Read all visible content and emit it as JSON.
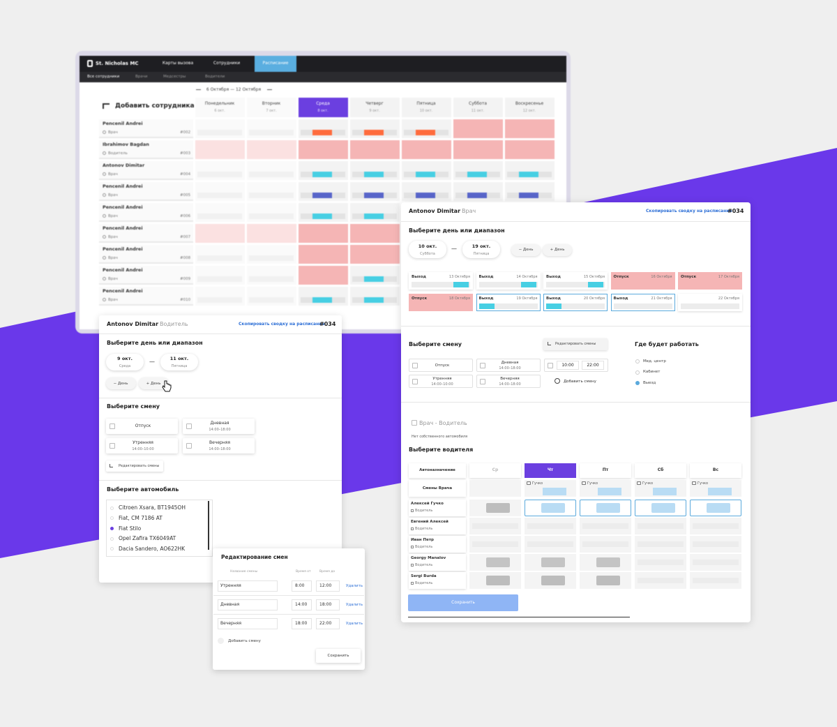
{
  "schedule": {
    "logo": "St. Nicholas MC",
    "nav": [
      "Карты вызова",
      "Сотрудники",
      "Расписание"
    ],
    "nav_active": 2,
    "nav_active_color": "#5aaee0",
    "subnav": [
      "Все сотрудники",
      "Врачи",
      "Медсестры",
      "Водители"
    ],
    "week": "6 Октября — 12 Октября",
    "add_employee": "Добавить сотрудника",
    "days": [
      {
        "name": "Понедельник",
        "date": "6 окт."
      },
      {
        "name": "Вторник",
        "date": "7 окт."
      },
      {
        "name": "Среда",
        "date": "8 окт."
      },
      {
        "name": "Четверг",
        "date": "9 окт."
      },
      {
        "name": "Пятница",
        "date": "10 окт."
      },
      {
        "name": "Суббота",
        "date": "11 окт."
      },
      {
        "name": "Воскресенье",
        "date": "12 окт."
      }
    ],
    "active_day": 2,
    "active_color": "#6b3fe0",
    "employees": [
      {
        "name": "Pencenil Andrei",
        "role": "Врач",
        "id": "#002",
        "cells": [
          null,
          null,
          {
            "bar": "#ff6b3d"
          },
          {
            "bar": "#ff6b3d"
          },
          {
            "bar": "#ff6b3d"
          },
          {
            "fill": "#f5b5b5"
          },
          {
            "fill": "#f5b5b5"
          }
        ]
      },
      {
        "name": "Ibrahimov Bagdan",
        "role": "Водитель",
        "id": "#003",
        "cells": [
          {
            "fill": "#f5b5b5"
          },
          {
            "fill": "#f5b5b5"
          },
          {
            "fill": "#f5b5b5"
          },
          {
            "fill": "#f5b5b5"
          },
          {
            "fill": "#f5b5b5"
          },
          {
            "fill": "#f5b5b5"
          },
          {
            "fill": "#f5b5b5"
          }
        ]
      },
      {
        "name": "Antonov Dimitar",
        "role": "Врач",
        "id": "#004",
        "cells": [
          null,
          null,
          {
            "bar": "#47cfe3"
          },
          {
            "bar": "#47cfe3"
          },
          {
            "bar": "#47cfe3"
          },
          {
            "bar": "#47cfe3"
          },
          {
            "bar": "#47cfe3"
          }
        ]
      },
      {
        "name": "Pencenil Andrei",
        "role": "Врач",
        "id": "#005",
        "cells": [
          null,
          null,
          {
            "bar": "#5865c9"
          },
          {
            "bar": "#5865c9"
          },
          {
            "bar": "#5865c9"
          },
          {
            "bar": "#5865c9"
          },
          {
            "bar": "#5865c9"
          }
        ]
      },
      {
        "name": "Pencenil Andrei",
        "role": "Врач",
        "id": "#006",
        "cells": [
          null,
          null,
          {
            "bar": "#47cfe3"
          },
          {
            "bar": "#47cfe3"
          },
          {
            "bar": "#47cfe3"
          },
          null,
          null
        ]
      },
      {
        "name": "Pencenil Andrei",
        "role": "Врач",
        "id": "#007",
        "cells": [
          {
            "fill": "#f5b5b5"
          },
          {
            "fill": "#f5b5b5"
          },
          {
            "fill": "#f5b5b5"
          },
          {
            "fill": "#f5b5b5"
          },
          {
            "fill": "#f5b5b5"
          },
          null,
          null
        ]
      },
      {
        "name": "Pencenil Andrei",
        "role": "Врач",
        "id": "#008",
        "cells": [
          null,
          null,
          {
            "fill": "#f5b5b5"
          },
          {
            "fill": "#f5b5b5"
          },
          null,
          null,
          null
        ]
      },
      {
        "name": "Pencenil Andrei",
        "role": "Врач",
        "id": "#009",
        "cells": [
          null,
          null,
          {
            "fill": "#f5b5b5"
          },
          {
            "bar": "#47cfe3"
          },
          null,
          null,
          null
        ]
      },
      {
        "name": "Pencenil Andrei",
        "role": "Врач",
        "id": "#010",
        "cells": [
          null,
          null,
          {
            "bar": "#47cfe3"
          },
          {
            "bar": "#47cfe3"
          },
          null,
          null,
          null
        ]
      }
    ]
  },
  "driver_card": {
    "name": "Antonov Dimitar",
    "role": "Водитель",
    "copy_link": "Скопировать сводку на расписание",
    "number": "#034",
    "range_title": "Выберите день или диапазон",
    "range_from": {
      "date": "9 окт.",
      "day": "Среда"
    },
    "range_sep": "—",
    "range_to": {
      "date": "11 окт.",
      "day": "Пятница"
    },
    "minus_day": "− День",
    "plus_day": "+ День",
    "shift_title": "Выберите смену",
    "shifts": [
      {
        "name": "Отпуск"
      },
      {
        "name": "Дневная",
        "time": "14:00–18:00"
      },
      {
        "name": "Утренняя",
        "time": "14:00–10:00"
      },
      {
        "name": "Вечерняя",
        "time": "14:00–18:00"
      }
    ],
    "edit_shifts": "Редактировать смены",
    "car_title": "Выберите автомобиль",
    "cars": [
      "Citroen Xsara, BT1945ОН",
      "Fiat, CM 7186 AT",
      "Fiat Stilo",
      "Opel Zafira TX6049AT",
      "Dacia Sandero, AO622HK"
    ],
    "selected_car": 2
  },
  "shift_editor": {
    "title": "Редактирование смен",
    "columns": [
      "Название смены",
      "Время от",
      "Время до"
    ],
    "rows": [
      {
        "name": "Утренняя",
        "from": "8:00",
        "to": "12:00",
        "action": "Удалить"
      },
      {
        "name": "Дневная",
        "from": "14:00",
        "to": "18:00",
        "action": "Удалить"
      },
      {
        "name": "Вечерняя",
        "from": "18:00",
        "to": "22:00",
        "action": "Удалить"
      }
    ],
    "add": "Добавить смену",
    "save": "Сохранить"
  },
  "doctor_card": {
    "name": "Antonov Dimitar",
    "role": "Врач",
    "copy_link": "Скопировать сводку на расписание",
    "number": "#034",
    "range_title": "Выберите день или диапазон",
    "range_from": {
      "date": "10 окт.",
      "day": "Суббота"
    },
    "range_sep": "—",
    "range_to": {
      "date": "19 окт.",
      "day": "Пятница"
    },
    "minus_day": "− День",
    "plus_day": "+ День",
    "days": [
      {
        "label": "Выход",
        "date": "13 Октября",
        "bar": "#47cfe3"
      },
      {
        "label": "Выход",
        "date": "14 Октября",
        "bar": "#47cfe3"
      },
      {
        "label": "Выход",
        "date": "15 Октября",
        "bar": "#47cfe3"
      },
      {
        "label": "Отпуск",
        "date": "16 Октября",
        "fill": "#f5b5b5"
      },
      {
        "label": "Отпуск",
        "date": "17 Октября",
        "fill": "#f5b5b5"
      },
      {
        "label": "Отпуск",
        "date": "18 Октября",
        "fill": "#f5b5b5"
      },
      {
        "label": "Выход",
        "date": "19 Октября",
        "bar": "#47cfe3",
        "border": "#5aa9dc"
      },
      {
        "label": "Выход",
        "date": "20 Октября",
        "bar": "#47cfe3",
        "border": "#5aa9dc"
      },
      {
        "label": "Выход",
        "date": "21 Октября",
        "border": "#5aa9dc"
      },
      {
        "date": "22 Октября"
      }
    ],
    "shift_title": "Выберите смену",
    "edit_shifts": "Редактировать смены",
    "shifts": [
      {
        "name": "Отпуск"
      },
      {
        "name": "Дневная",
        "time": "14:00–18:00"
      },
      {
        "from": "10:00",
        "to": "22:00"
      },
      {
        "name": "Утренняя",
        "time": "14:00–10:00"
      },
      {
        "name": "Вечерняя",
        "time": "14:00–18:00"
      }
    ],
    "add_shift": "Добавить смену",
    "place_title": "Где будет работать",
    "places": [
      "Мед. центр",
      "Кабинет",
      "Выезд"
    ],
    "selected_place": 2,
    "pair_label": "Врач - Водитель",
    "no_car": "Нет собственного автомобиля",
    "driver_title": "Выберите водителя",
    "auto": "Автоназначение",
    "week_days": [
      "Ср",
      "Чт",
      "Пт",
      "Сб",
      "Вс"
    ],
    "active_day": 1,
    "active_color": "#6b3fe0",
    "doctor_shifts_label": "Смены Врача",
    "doctor_shifts": [
      null,
      "Гучко",
      "Гучко",
      "Гучко",
      "Гучко"
    ],
    "drivers": [
      {
        "name": "Алексей Гучко",
        "role": "Водитель",
        "slots": [
          {
            "bar": "#bdbdbd"
          },
          {
            "bar": "#b9dcf4",
            "border": "#5aa9dc"
          },
          {
            "bar": "#b9dcf4",
            "border": "#5aa9dc"
          },
          {
            "bar": "#b9dcf4",
            "border": "#5aa9dc"
          },
          {
            "bar": "#b9dcf4",
            "border": "#5aa9dc"
          }
        ]
      },
      {
        "name": "Евгений Алексей",
        "role": "Водитель",
        "slots": [
          null,
          null,
          null,
          null,
          null
        ]
      },
      {
        "name": "Иван Петр",
        "role": "Водитель",
        "slots": [
          null,
          null,
          null,
          null,
          null
        ]
      },
      {
        "name": "Georgy Manalov",
        "role": "Водитель",
        "slots": [
          {
            "bar": "#c4c4c4"
          },
          {
            "bar": "#c4c4c4"
          },
          {
            "bar": "#c4c4c4"
          },
          null,
          null
        ]
      },
      {
        "name": "Sergi Burda",
        "role": "Водитель",
        "slots": [
          {
            "bar": "#bdbdbd"
          },
          {
            "bar": "#bdbdbd"
          },
          {
            "bar": "#bdbdbd"
          },
          null,
          null
        ]
      }
    ],
    "save": "Сохранить"
  }
}
